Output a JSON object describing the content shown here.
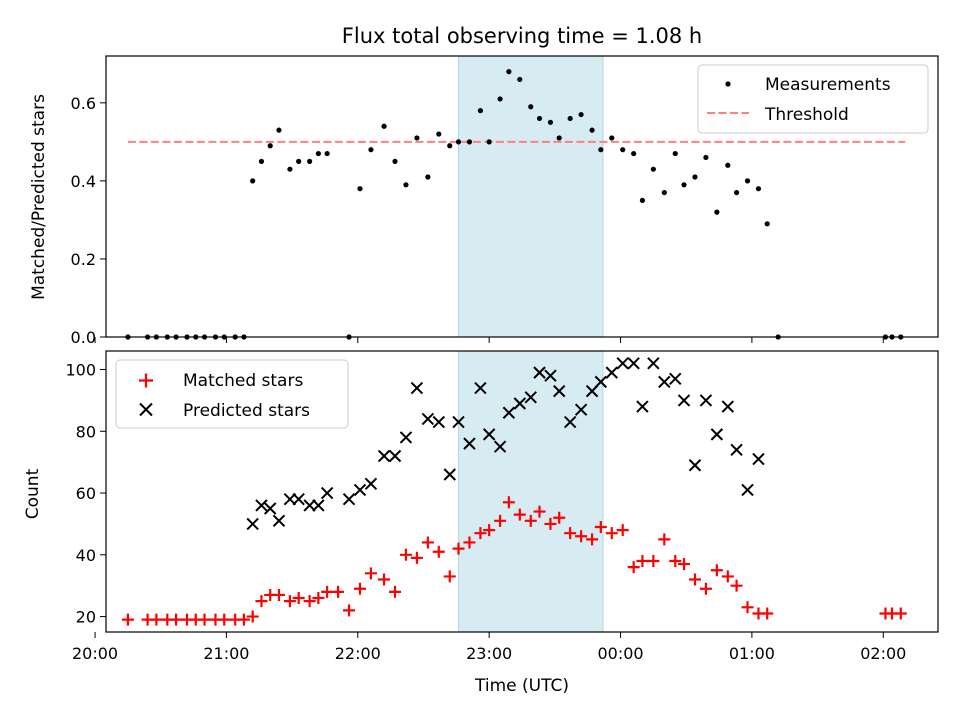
{
  "chart_data": [
    {
      "type": "scatter",
      "title": "Flux total observing time = 1.08 h",
      "xlabel": "",
      "ylabel": "Matched/Predicted stars",
      "x_unit": "time (UTC)",
      "xlim": [
        "20:05",
        "02:25"
      ],
      "ylim": [
        0.0,
        0.72
      ],
      "yticks": [
        0.0,
        0.2,
        0.4,
        0.6
      ],
      "ytick_labels": [
        "0.0",
        "0.2",
        "0.4",
        "0.6"
      ],
      "highlight_span": {
        "start": "22:46",
        "end": "23:52",
        "color": "#add8e6"
      },
      "legend_position": "upper right",
      "grid": false,
      "series": [
        {
          "name": "Measurements",
          "marker": "dot",
          "color": "#000000",
          "points": [
            [
              "20:15",
              0
            ],
            [
              "20:24",
              0
            ],
            [
              "20:28",
              0
            ],
            [
              "20:33",
              0
            ],
            [
              "20:37",
              0
            ],
            [
              "20:42",
              0
            ],
            [
              "20:46",
              0
            ],
            [
              "20:50",
              0
            ],
            [
              "20:55",
              0
            ],
            [
              "20:59",
              0
            ],
            [
              "21:04",
              0
            ],
            [
              "21:08",
              0
            ],
            [
              "21:12",
              0.4
            ],
            [
              "21:16",
              0.45
            ],
            [
              "21:20",
              0.49
            ],
            [
              "21:24",
              0.53
            ],
            [
              "21:29",
              0.43
            ],
            [
              "21:33",
              0.45
            ],
            [
              "21:38",
              0.45
            ],
            [
              "21:42",
              0.47
            ],
            [
              "21:46",
              0.47
            ],
            [
              "21:56",
              0
            ],
            [
              "22:01",
              0.38
            ],
            [
              "22:06",
              0.48
            ],
            [
              "22:12",
              0.54
            ],
            [
              "22:17",
              0.45
            ],
            [
              "22:22",
              0.39
            ],
            [
              "22:27",
              0.51
            ],
            [
              "22:32",
              0.41
            ],
            [
              "22:37",
              0.52
            ],
            [
              "22:42",
              0.49
            ],
            [
              "22:46",
              0.5
            ],
            [
              "22:51",
              0.5
            ],
            [
              "22:56",
              0.58
            ],
            [
              "23:00",
              0.5
            ],
            [
              "23:05",
              0.61
            ],
            [
              "23:09",
              0.68
            ],
            [
              "23:14",
              0.66
            ],
            [
              "23:19",
              0.59
            ],
            [
              "23:23",
              0.56
            ],
            [
              "23:28",
              0.55
            ],
            [
              "23:32",
              0.51
            ],
            [
              "23:37",
              0.56
            ],
            [
              "23:42",
              0.57
            ],
            [
              "23:47",
              0.53
            ],
            [
              "23:51",
              0.48
            ],
            [
              "23:56",
              0.51
            ],
            [
              "00:01",
              0.48
            ],
            [
              "00:06",
              0.47
            ],
            [
              "00:10",
              0.35
            ],
            [
              "00:15",
              0.43
            ],
            [
              "00:20",
              0.37
            ],
            [
              "00:25",
              0.47
            ],
            [
              "00:29",
              0.39
            ],
            [
              "00:34",
              0.41
            ],
            [
              "00:39",
              0.46
            ],
            [
              "00:44",
              0.32
            ],
            [
              "00:49",
              0.44
            ],
            [
              "00:53",
              0.37
            ],
            [
              "00:58",
              0.4
            ],
            [
              "01:03",
              0.38
            ],
            [
              "01:07",
              0.29
            ],
            [
              "01:12",
              0
            ],
            [
              "02:01",
              0
            ],
            [
              "02:04",
              0
            ],
            [
              "02:08",
              0
            ]
          ]
        },
        {
          "name": "Threshold",
          "style": "dashed",
          "color": "#ff7f7f",
          "points": [
            [
              "20:15",
              0.5
            ],
            [
              "02:10",
              0.5
            ]
          ]
        }
      ]
    },
    {
      "type": "scatter",
      "title": "",
      "xlabel": "Time (UTC)",
      "ylabel": "Count",
      "x_unit": "time (UTC)",
      "xlim": [
        "20:05",
        "02:25"
      ],
      "ylim": [
        15,
        106
      ],
      "xticks": [
        "20:00",
        "21:00",
        "22:00",
        "23:00",
        "00:00",
        "01:00",
        "02:00"
      ],
      "yticks": [
        20,
        40,
        60,
        80,
        100
      ],
      "highlight_span": {
        "start": "22:46",
        "end": "23:52",
        "color": "#add8e6"
      },
      "legend_position": "upper left",
      "grid": false,
      "series": [
        {
          "name": "Matched stars",
          "marker": "plus",
          "color": "#ff0000",
          "points": [
            [
              "20:15",
              19
            ],
            [
              "20:24",
              19
            ],
            [
              "20:28",
              19
            ],
            [
              "20:33",
              19
            ],
            [
              "20:37",
              19
            ],
            [
              "20:42",
              19
            ],
            [
              "20:46",
              19
            ],
            [
              "20:50",
              19
            ],
            [
              "20:55",
              19
            ],
            [
              "20:59",
              19
            ],
            [
              "21:04",
              19
            ],
            [
              "21:08",
              19
            ],
            [
              "21:12",
              20
            ],
            [
              "21:16",
              25
            ],
            [
              "21:20",
              27
            ],
            [
              "21:24",
              27
            ],
            [
              "21:29",
              25
            ],
            [
              "21:33",
              26
            ],
            [
              "21:38",
              25
            ],
            [
              "21:42",
              26
            ],
            [
              "21:46",
              28
            ],
            [
              "21:51",
              28
            ],
            [
              "21:56",
              22
            ],
            [
              "22:01",
              29
            ],
            [
              "22:06",
              34
            ],
            [
              "22:12",
              32
            ],
            [
              "22:17",
              28
            ],
            [
              "22:22",
              40
            ],
            [
              "22:27",
              39
            ],
            [
              "22:32",
              44
            ],
            [
              "22:37",
              41
            ],
            [
              "22:42",
              33
            ],
            [
              "22:46",
              42
            ],
            [
              "22:51",
              44
            ],
            [
              "22:56",
              47
            ],
            [
              "23:00",
              48
            ],
            [
              "23:05",
              51
            ],
            [
              "23:09",
              57
            ],
            [
              "23:14",
              53
            ],
            [
              "23:19",
              51
            ],
            [
              "23:23",
              54
            ],
            [
              "23:28",
              50
            ],
            [
              "23:32",
              52
            ],
            [
              "23:37",
              47
            ],
            [
              "23:42",
              46
            ],
            [
              "23:47",
              45
            ],
            [
              "23:51",
              49
            ],
            [
              "23:56",
              47
            ],
            [
              "00:01",
              48
            ],
            [
              "00:06",
              36
            ],
            [
              "00:10",
              38
            ],
            [
              "00:15",
              38
            ],
            [
              "00:20",
              45
            ],
            [
              "00:25",
              38
            ],
            [
              "00:29",
              37
            ],
            [
              "00:34",
              32
            ],
            [
              "00:39",
              29
            ],
            [
              "00:44",
              35
            ],
            [
              "00:49",
              33
            ],
            [
              "00:53",
              30
            ],
            [
              "00:58",
              23
            ],
            [
              "01:03",
              21
            ],
            [
              "01:07",
              21
            ],
            [
              "02:01",
              21
            ],
            [
              "02:04",
              21
            ],
            [
              "02:08",
              21
            ]
          ]
        },
        {
          "name": "Predicted stars",
          "marker": "x",
          "color": "#000000",
          "points": [
            [
              "21:12",
              50
            ],
            [
              "21:16",
              56
            ],
            [
              "21:20",
              55
            ],
            [
              "21:24",
              51
            ],
            [
              "21:29",
              58
            ],
            [
              "21:33",
              58
            ],
            [
              "21:38",
              56
            ],
            [
              "21:42",
              56
            ],
            [
              "21:46",
              60
            ],
            [
              "21:56",
              58
            ],
            [
              "22:01",
              61
            ],
            [
              "22:06",
              63
            ],
            [
              "22:12",
              72
            ],
            [
              "22:17",
              72
            ],
            [
              "22:22",
              78
            ],
            [
              "22:27",
              94
            ],
            [
              "22:32",
              84
            ],
            [
              "22:37",
              83
            ],
            [
              "22:42",
              66
            ],
            [
              "22:46",
              83
            ],
            [
              "22:51",
              76
            ],
            [
              "22:56",
              94
            ],
            [
              "23:00",
              79
            ],
            [
              "23:05",
              75
            ],
            [
              "23:09",
              86
            ],
            [
              "23:14",
              89
            ],
            [
              "23:19",
              91
            ],
            [
              "23:23",
              99
            ],
            [
              "23:28",
              98
            ],
            [
              "23:32",
              93
            ],
            [
              "23:37",
              83
            ],
            [
              "23:42",
              87
            ],
            [
              "23:47",
              93
            ],
            [
              "23:51",
              96
            ],
            [
              "23:56",
              99
            ],
            [
              "00:01",
              102
            ],
            [
              "00:06",
              102
            ],
            [
              "00:10",
              88
            ],
            [
              "00:15",
              102
            ],
            [
              "00:20",
              96
            ],
            [
              "00:25",
              97
            ],
            [
              "00:29",
              90
            ],
            [
              "00:34",
              69
            ],
            [
              "00:39",
              90
            ],
            [
              "00:44",
              79
            ],
            [
              "00:49",
              88
            ],
            [
              "00:53",
              74
            ],
            [
              "00:58",
              61
            ],
            [
              "01:03",
              71
            ]
          ]
        }
      ]
    }
  ]
}
